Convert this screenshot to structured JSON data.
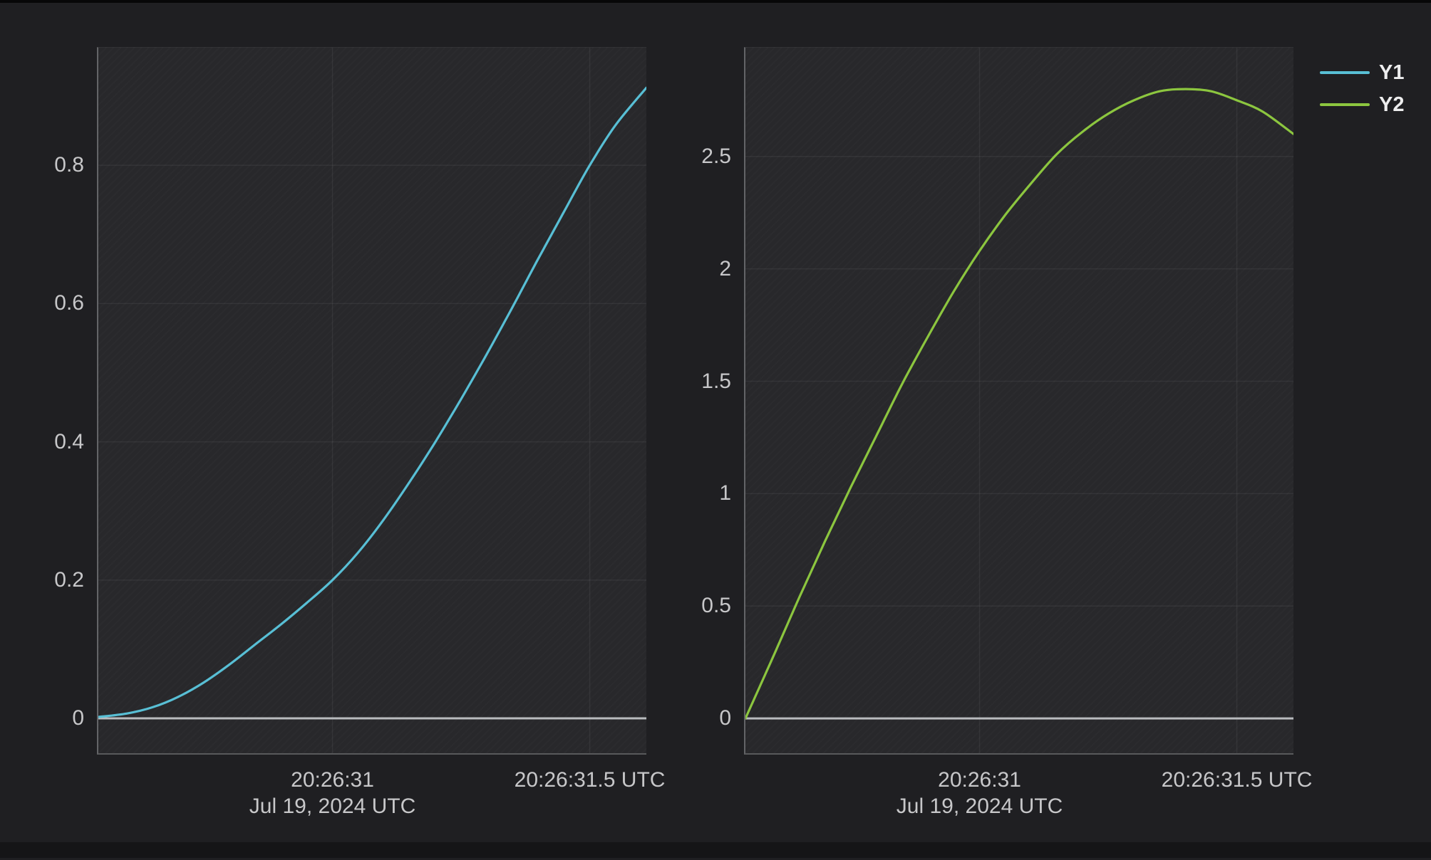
{
  "page": {
    "background": "#1f1f22",
    "plot_background": "#28282b"
  },
  "legend": {
    "position": "top-right",
    "items": [
      {
        "label": "Y1",
        "color": "#58bfd5"
      },
      {
        "label": "Y2",
        "color": "#8cc63f"
      }
    ]
  },
  "axis_colors": {
    "tick_text": "#c7c7c9",
    "grid": "rgba(255,255,255,0.06)",
    "zero_line": "#b9bbbe"
  },
  "chart_data": [
    {
      "type": "line",
      "series_name": "Y1",
      "color": "#58bfd5",
      "line_width": 3.2,
      "x_unit": "seconds after 20:26:30 UTC",
      "xlim": [
        0.545,
        1.61
      ],
      "ylim": [
        -0.0504,
        0.97
      ],
      "grid": true,
      "zero_line": true,
      "x_ticks": [
        {
          "v": 1.0,
          "label": "20:26:31",
          "sublabel": "Jul 19, 2024 UTC"
        },
        {
          "v": 1.5,
          "label": "20:26:31.5 UTC",
          "sublabel": ""
        }
      ],
      "y_ticks": [
        {
          "v": 0,
          "label": "0"
        },
        {
          "v": 0.2,
          "label": "0.2"
        },
        {
          "v": 0.4,
          "label": "0.4"
        },
        {
          "v": 0.6,
          "label": "0.6"
        },
        {
          "v": 0.8,
          "label": "0.8"
        }
      ],
      "x": [
        0.545,
        0.6,
        0.65,
        0.7,
        0.75,
        0.8,
        0.85,
        0.9,
        0.95,
        1.0,
        1.05,
        1.1,
        1.15,
        1.2,
        1.25,
        1.3,
        1.35,
        1.4,
        1.45,
        1.5,
        1.55,
        1.61
      ],
      "values": [
        0.002,
        0.007,
        0.016,
        0.031,
        0.052,
        0.078,
        0.107,
        0.136,
        0.167,
        0.2,
        0.24,
        0.288,
        0.342,
        0.4,
        0.462,
        0.527,
        0.595,
        0.665,
        0.733,
        0.8,
        0.858,
        0.912
      ]
    },
    {
      "type": "line",
      "series_name": "Y2",
      "color": "#8cc63f",
      "line_width": 3.2,
      "x_unit": "seconds after 20:26:30 UTC",
      "xlim": [
        0.545,
        1.61
      ],
      "ylim": [
        -0.155,
        2.984
      ],
      "grid": true,
      "zero_line": true,
      "x_ticks": [
        {
          "v": 1.0,
          "label": "20:26:31",
          "sublabel": "Jul 19, 2024 UTC"
        },
        {
          "v": 1.5,
          "label": "20:26:31.5 UTC",
          "sublabel": ""
        }
      ],
      "y_ticks": [
        {
          "v": 0,
          "label": "0"
        },
        {
          "v": 0.5,
          "label": "0.5"
        },
        {
          "v": 1,
          "label": "1"
        },
        {
          "v": 1.5,
          "label": "1.5"
        },
        {
          "v": 2,
          "label": "2"
        },
        {
          "v": 2.5,
          "label": "2.5"
        }
      ],
      "x": [
        0.545,
        0.6,
        0.65,
        0.7,
        0.75,
        0.8,
        0.85,
        0.9,
        0.95,
        1.0,
        1.05,
        1.1,
        1.15,
        1.2,
        1.25,
        1.3,
        1.35,
        1.4,
        1.45,
        1.5,
        1.55,
        1.61
      ],
      "values": [
        0.0,
        0.28,
        0.54,
        0.79,
        1.03,
        1.26,
        1.49,
        1.7,
        1.9,
        2.08,
        2.24,
        2.38,
        2.51,
        2.61,
        2.69,
        2.75,
        2.79,
        2.8,
        2.79,
        2.75,
        2.7,
        2.6
      ]
    }
  ]
}
